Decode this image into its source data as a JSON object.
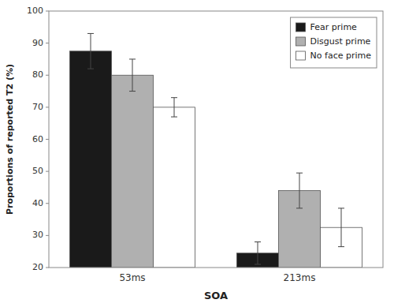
{
  "chart_data": {
    "type": "bar",
    "xlabel": "SOA",
    "ylabel": "Proportions of reported T2 (%)",
    "categories": [
      "53ms",
      "213ms"
    ],
    "series": [
      {
        "name": "Fear prime",
        "color": "#1a1a1a",
        "values": [
          87.5,
          24.5
        ],
        "errors": [
          5.5,
          3.5
        ]
      },
      {
        "name": "Disgust prime",
        "color": "#b0b0b0",
        "values": [
          80.0,
          44.0
        ],
        "errors": [
          5.0,
          5.5
        ]
      },
      {
        "name": "No face prime",
        "color": "#ffffff",
        "values": [
          70.0,
          32.5
        ],
        "errors": [
          3.0,
          6.0
        ]
      }
    ],
    "ylim": [
      20,
      100
    ],
    "yticks": [
      20,
      30,
      40,
      50,
      60,
      70,
      80,
      90,
      100
    ],
    "legend": "upper right",
    "grid": false
  }
}
